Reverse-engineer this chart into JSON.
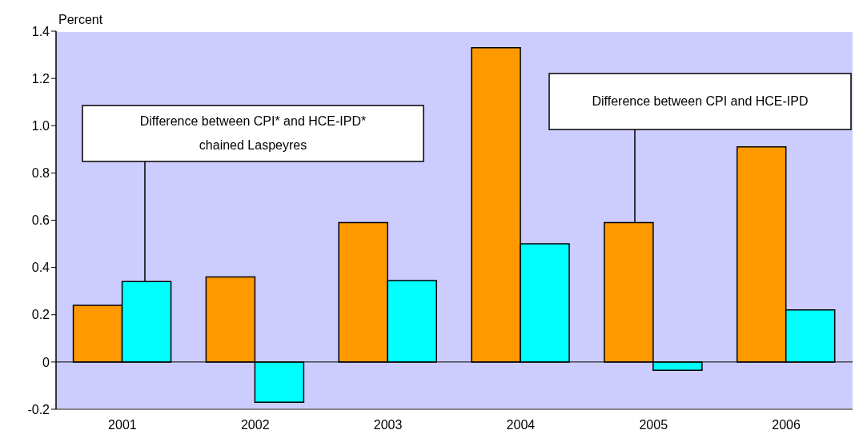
{
  "chart_data": {
    "type": "bar",
    "ylabel": "Percent",
    "categories": [
      "2001",
      "2002",
      "2003",
      "2004",
      "2005",
      "2006"
    ],
    "series": [
      {
        "color": "#ff9900",
        "values": [
          0.24,
          0.36,
          0.59,
          1.33,
          0.59,
          0.91
        ]
      },
      {
        "color": "#00ffff",
        "values": [
          0.34,
          -0.17,
          0.345,
          0.5,
          -0.035,
          0.22
        ]
      }
    ],
    "ylim": [
      -0.2,
      1.4
    ],
    "yticks": [
      {
        "value": -0.2,
        "label": "-0.2"
      },
      0,
      {
        "value": 0.2,
        "label": "0.2"
      },
      {
        "value": 0.4,
        "label": "0.4"
      },
      {
        "value": 0.6,
        "label": "0.6"
      },
      {
        "value": 0.8,
        "label": "0.8"
      },
      {
        "value": 1,
        "label": "1.0"
      },
      {
        "value": 1.2,
        "label": "1.2"
      },
      {
        "value": 1.4,
        "label": "1.4"
      }
    ],
    "grid": "y",
    "legend": false,
    "annotations": [
      "Difference between CPI* and HCE-IPD* chained Laspeyres",
      "Difference between CPI and HCE-IPD"
    ]
  }
}
